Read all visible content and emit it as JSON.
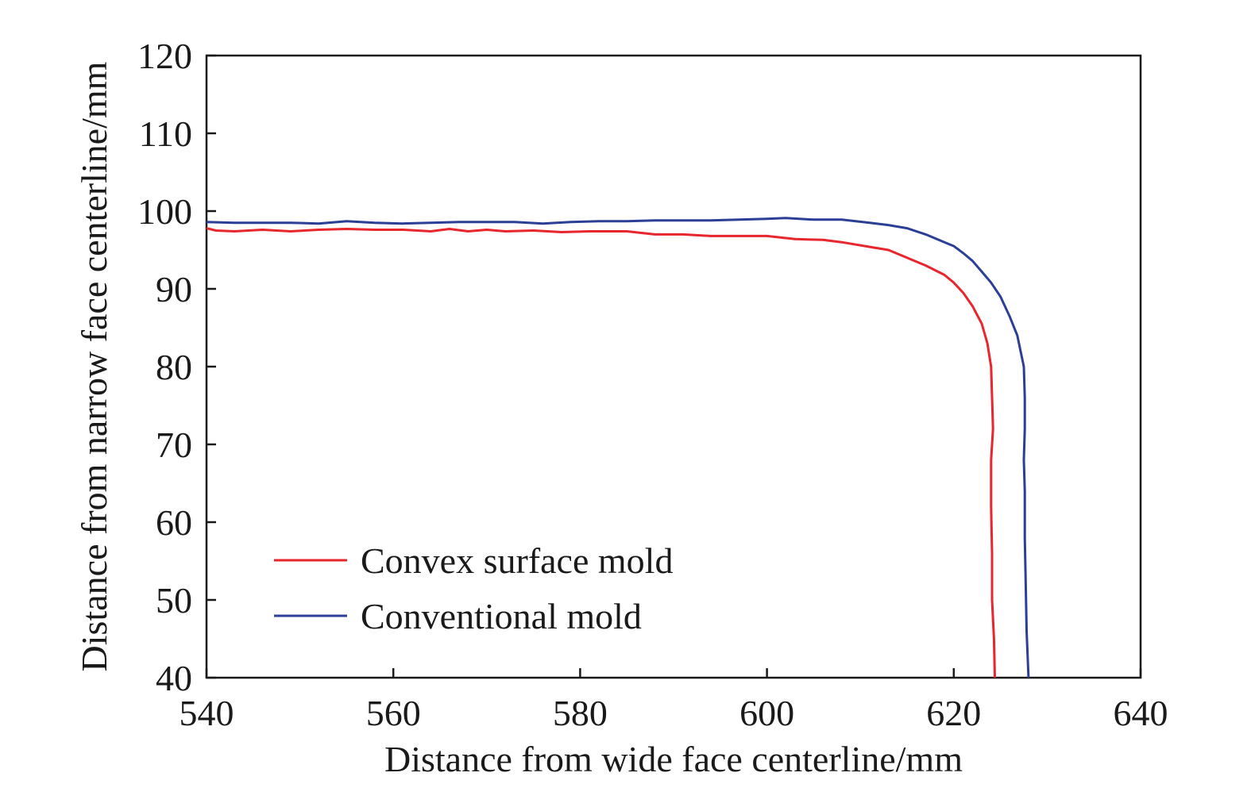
{
  "chart_data": {
    "type": "line",
    "xlabel": "Distance from wide face centerline/mm",
    "ylabel": "Distance from narrow face centerline/mm",
    "xlim": [
      540,
      640
    ],
    "ylim": [
      40,
      120
    ],
    "xticks": [
      540,
      560,
      580,
      600,
      620,
      640
    ],
    "yticks": [
      40,
      50,
      60,
      70,
      80,
      90,
      100,
      110,
      120
    ],
    "grid": false,
    "legend_position": "bottom-left",
    "series": [
      {
        "name": "Convex surface mold",
        "color": "#e8262d",
        "points": [
          [
            540,
            97.8
          ],
          [
            541,
            97.5
          ],
          [
            543,
            97.4
          ],
          [
            546,
            97.6
          ],
          [
            549,
            97.4
          ],
          [
            552,
            97.6
          ],
          [
            555,
            97.7
          ],
          [
            558,
            97.6
          ],
          [
            561,
            97.6
          ],
          [
            564,
            97.4
          ],
          [
            566,
            97.7
          ],
          [
            568,
            97.4
          ],
          [
            570,
            97.6
          ],
          [
            572,
            97.4
          ],
          [
            575,
            97.5
          ],
          [
            578,
            97.3
          ],
          [
            581,
            97.4
          ],
          [
            585,
            97.4
          ],
          [
            588,
            97.0
          ],
          [
            591,
            97.0
          ],
          [
            594,
            96.8
          ],
          [
            597,
            96.8
          ],
          [
            600,
            96.8
          ],
          [
            603,
            96.4
          ],
          [
            606,
            96.3
          ],
          [
            608,
            96.0
          ],
          [
            611,
            95.4
          ],
          [
            613,
            95.0
          ],
          [
            615,
            94.0
          ],
          [
            617,
            93.0
          ],
          [
            619,
            91.8
          ],
          [
            620,
            90.8
          ],
          [
            621,
            89.5
          ],
          [
            622,
            87.8
          ],
          [
            623,
            85.5
          ],
          [
            623.6,
            83.0
          ],
          [
            624.0,
            80.0
          ],
          [
            624.1,
            76.0
          ],
          [
            624.2,
            72.0
          ],
          [
            624.0,
            68.0
          ],
          [
            624.0,
            62.0
          ],
          [
            624.1,
            56.0
          ],
          [
            624.1,
            50.0
          ],
          [
            624.3,
            45.0
          ],
          [
            624.4,
            40.0
          ]
        ]
      },
      {
        "name": "Conventional mold",
        "color": "#2b3f97",
        "points": [
          [
            540,
            98.6
          ],
          [
            543,
            98.5
          ],
          [
            546,
            98.5
          ],
          [
            549,
            98.5
          ],
          [
            552,
            98.4
          ],
          [
            555,
            98.7
          ],
          [
            558,
            98.5
          ],
          [
            561,
            98.4
          ],
          [
            564,
            98.5
          ],
          [
            567,
            98.6
          ],
          [
            570,
            98.6
          ],
          [
            573,
            98.6
          ],
          [
            576,
            98.4
          ],
          [
            579,
            98.6
          ],
          [
            582,
            98.7
          ],
          [
            585,
            98.7
          ],
          [
            588,
            98.8
          ],
          [
            591,
            98.8
          ],
          [
            594,
            98.8
          ],
          [
            597,
            98.9
          ],
          [
            600,
            99.0
          ],
          [
            602,
            99.1
          ],
          [
            605,
            98.9
          ],
          [
            608,
            98.9
          ],
          [
            611,
            98.5
          ],
          [
            613,
            98.2
          ],
          [
            615,
            97.8
          ],
          [
            617,
            97.0
          ],
          [
            619,
            96.0
          ],
          [
            620,
            95.5
          ],
          [
            621,
            94.6
          ],
          [
            622,
            93.6
          ],
          [
            623,
            92.2
          ],
          [
            624,
            90.8
          ],
          [
            625,
            89.0
          ],
          [
            626,
            86.4
          ],
          [
            626.8,
            84.0
          ],
          [
            627.5,
            80.0
          ],
          [
            627.6,
            76.0
          ],
          [
            627.6,
            72.0
          ],
          [
            627.5,
            68.0
          ],
          [
            627.6,
            64.0
          ],
          [
            627.6,
            58.0
          ],
          [
            627.7,
            52.0
          ],
          [
            627.8,
            46.0
          ],
          [
            628.0,
            40.0
          ]
        ]
      }
    ]
  }
}
